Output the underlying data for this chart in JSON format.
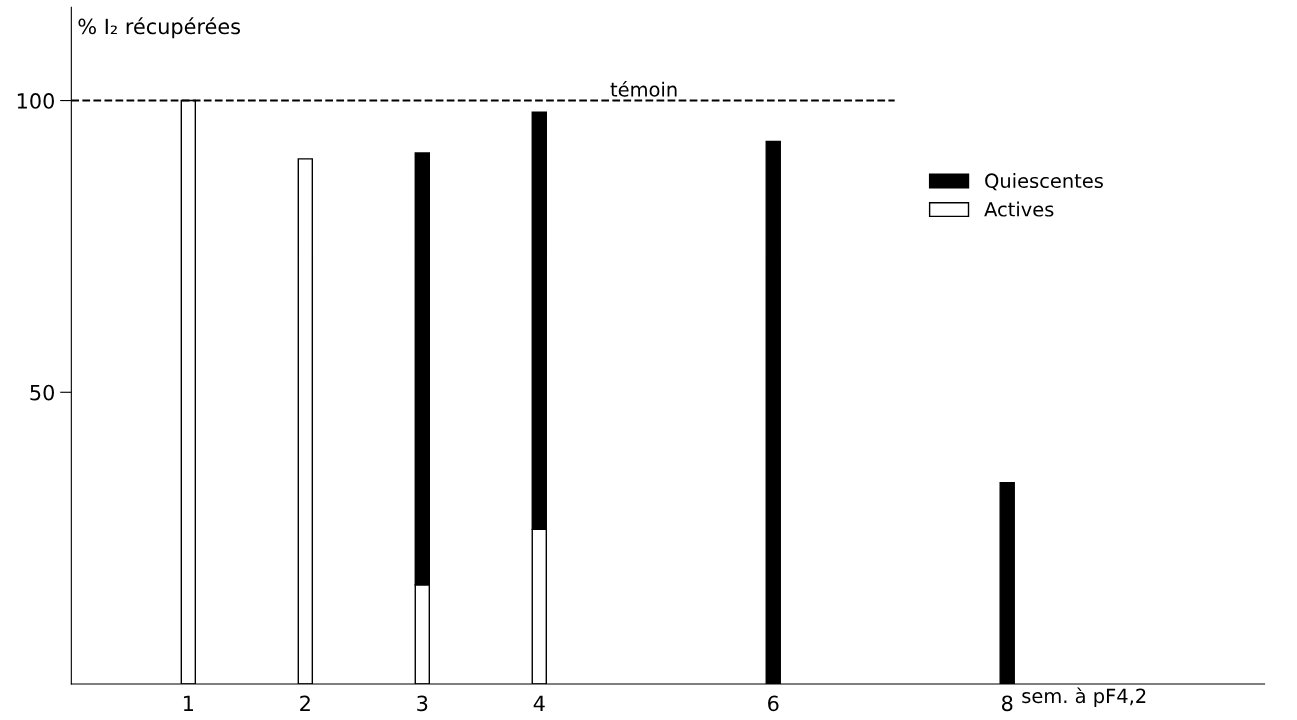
{
  "chart_data": {
    "type": "bar",
    "stacked": true,
    "ylabel": "% I₂ récupérées",
    "xlabel": "sem. à pF4,2",
    "x": [
      1,
      2,
      3,
      4,
      6,
      8
    ],
    "series": [
      {
        "name": "Actives",
        "color": "#ffffff",
        "values": [
          100,
          90,
          17,
          26.5,
          null,
          null
        ]
      },
      {
        "name": "Quiescentes",
        "color": "#000000",
        "values": [
          null,
          null,
          74,
          71.5,
          93,
          34.5
        ]
      }
    ],
    "xlim": [
      0,
      10.2
    ],
    "xticks": [
      1,
      2,
      3,
      4,
      6,
      8
    ],
    "ylim": [
      0,
      116
    ],
    "yticks": [
      50,
      100
    ],
    "ref_lines": [
      {
        "axis": "y",
        "value": 100,
        "label": "témoin",
        "line_style": "dashed"
      }
    ],
    "legend": "right",
    "grid": false
  }
}
